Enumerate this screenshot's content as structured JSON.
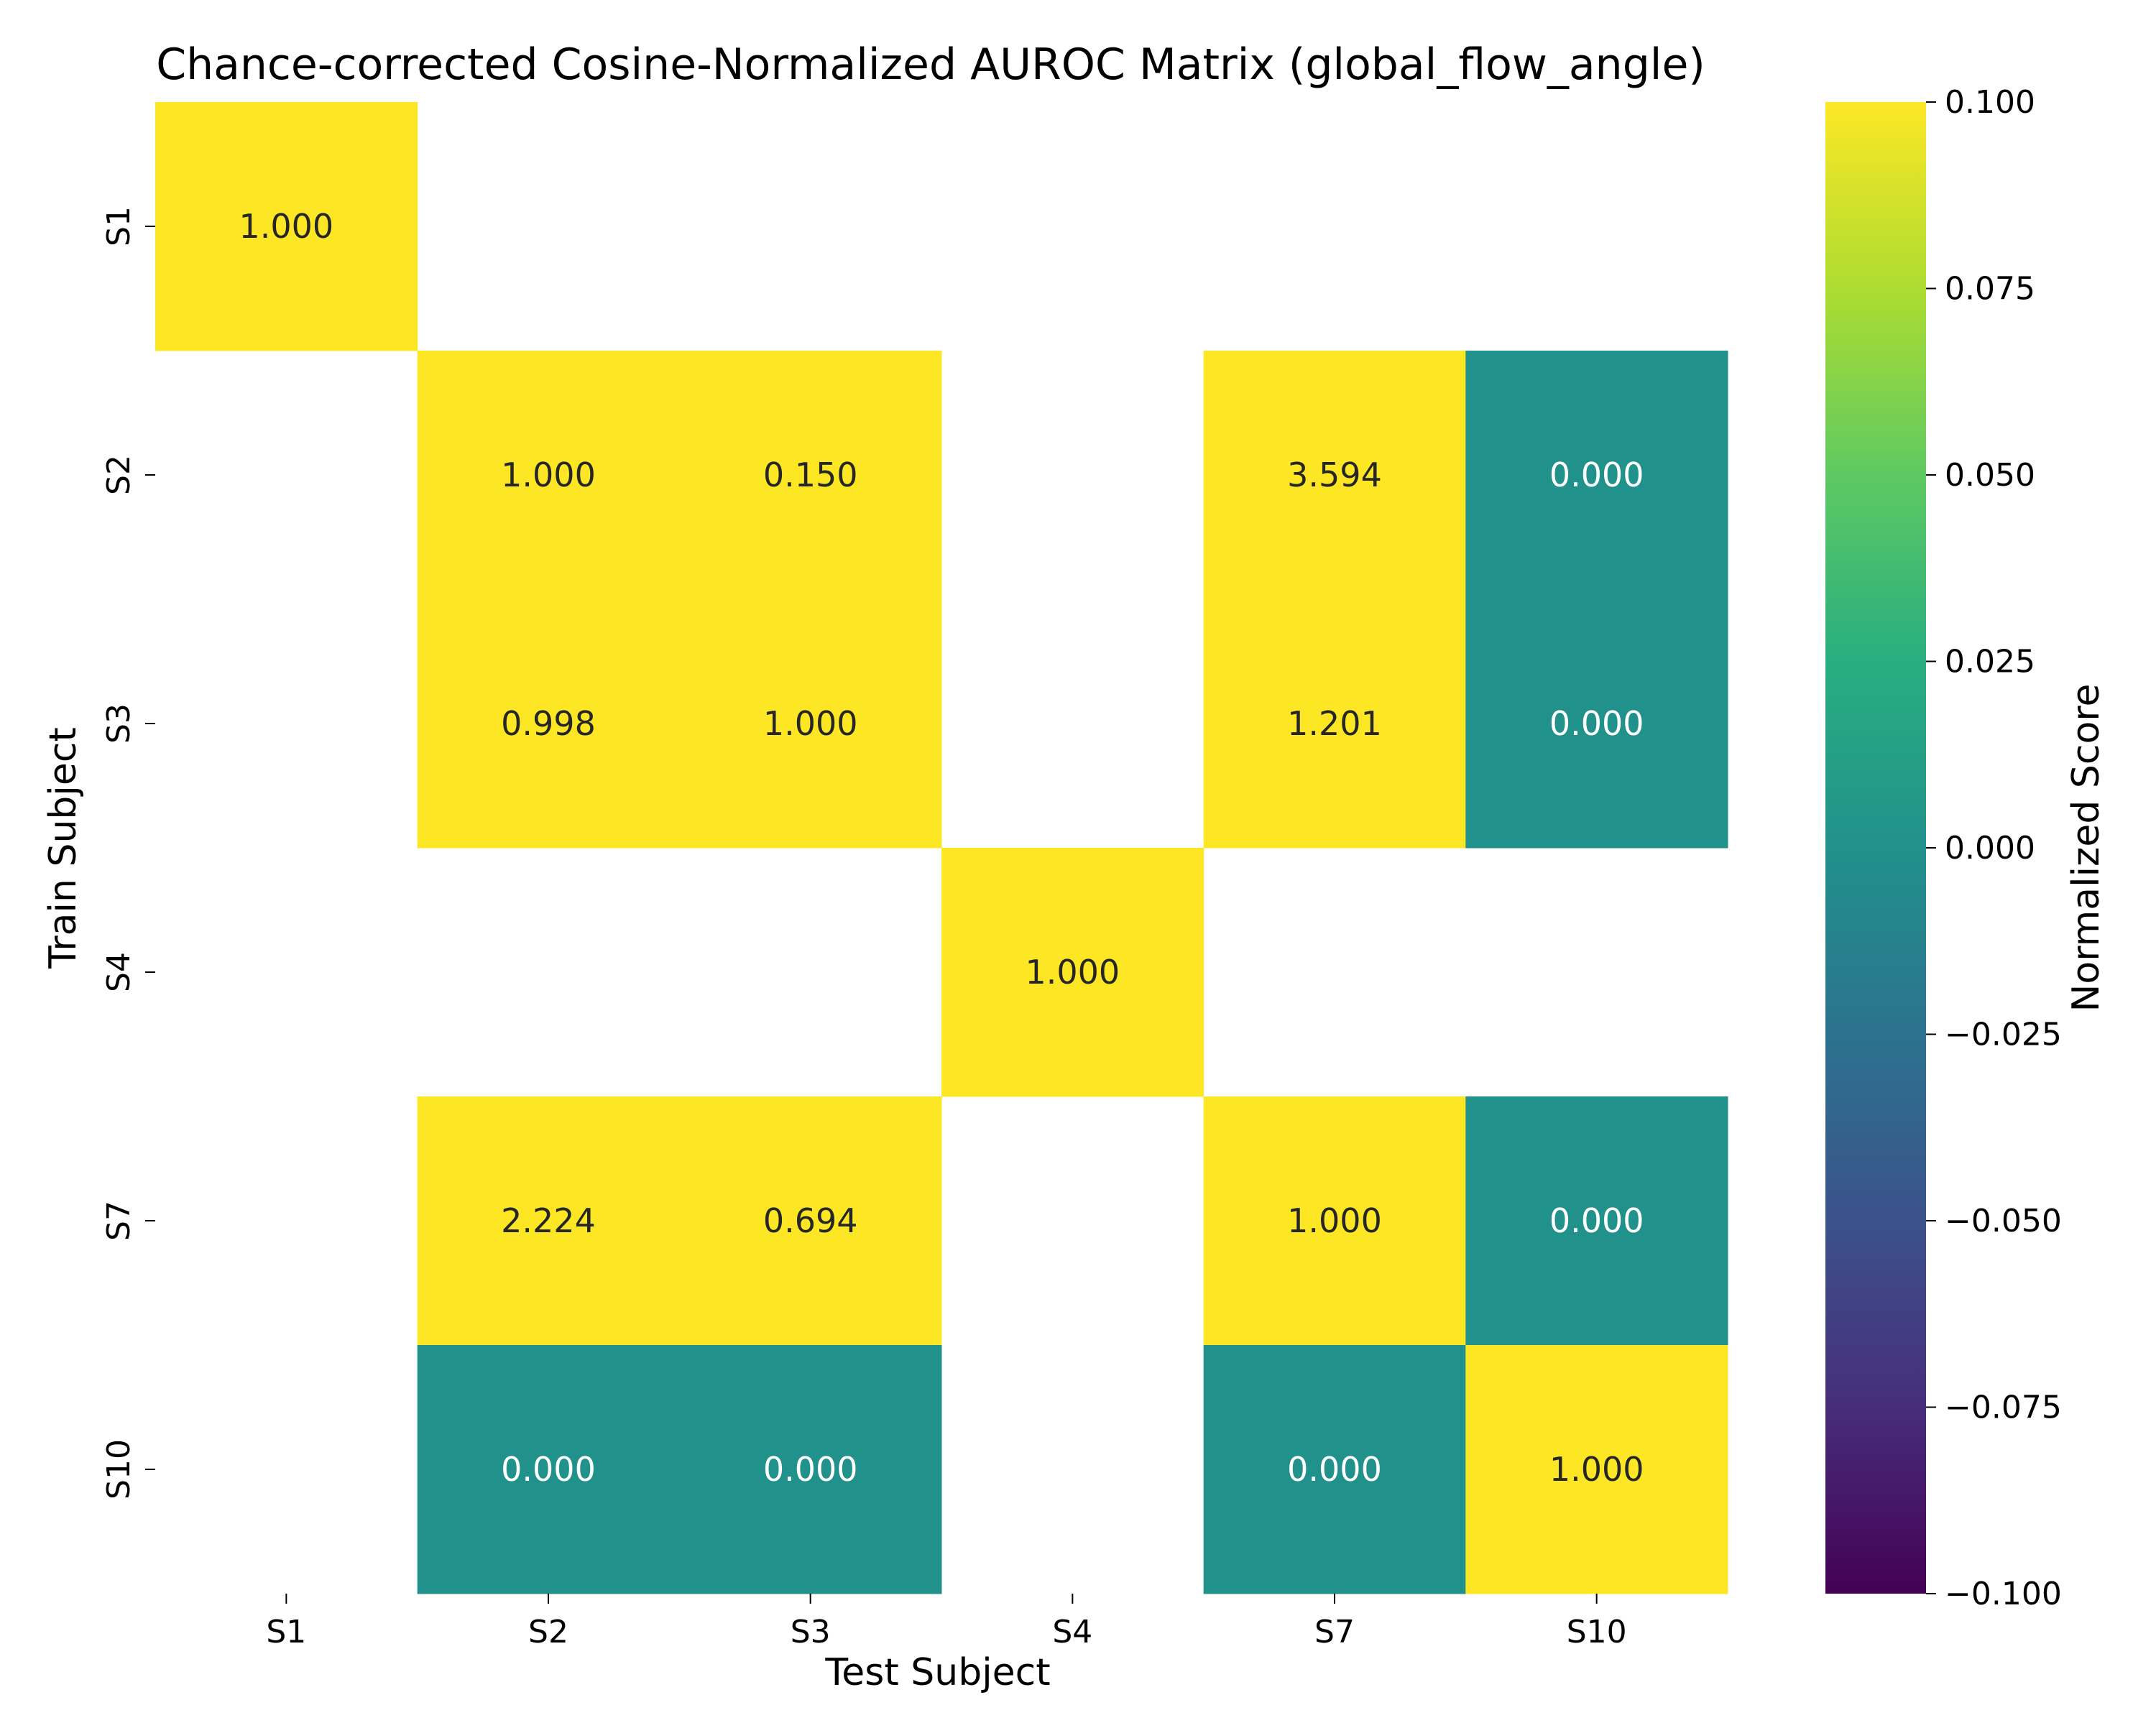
{
  "chart_data": {
    "type": "heatmap",
    "title": "Chance-corrected Cosine-Normalized AUROC Matrix (global_flow_angle)",
    "xlabel": "Test Subject",
    "ylabel": "Train Subject",
    "x_categories": [
      "S1",
      "S2",
      "S3",
      "S4",
      "S7",
      "S10"
    ],
    "y_categories": [
      "S1",
      "S2",
      "S3",
      "S4",
      "S7",
      "S10"
    ],
    "values": [
      [
        1.0,
        null,
        null,
        null,
        null,
        null
      ],
      [
        null,
        1.0,
        0.15,
        null,
        3.594,
        0.0
      ],
      [
        null,
        0.998,
        1.0,
        null,
        1.201,
        0.0
      ],
      [
        null,
        null,
        null,
        1.0,
        null,
        null
      ],
      [
        null,
        2.224,
        0.694,
        null,
        1.0,
        0.0
      ],
      [
        null,
        0.0,
        0.0,
        null,
        0.0,
        1.0
      ]
    ],
    "value_labels": [
      [
        "1.000",
        "",
        "",
        "",
        "",
        ""
      ],
      [
        "",
        "1.000",
        "0.150",
        "",
        "3.594",
        "0.000"
      ],
      [
        "",
        "0.998",
        "1.000",
        "",
        "1.201",
        "0.000"
      ],
      [
        "",
        "",
        "",
        "1.000",
        "",
        ""
      ],
      [
        "",
        "2.224",
        "0.694",
        "",
        "1.000",
        "0.000"
      ],
      [
        "",
        "0.000",
        "0.000",
        "",
        "0.000",
        "1.000"
      ]
    ],
    "colormap": "viridis",
    "vmin": -0.1,
    "vmax": 0.1,
    "colorbar": {
      "label": "Normalized Score",
      "ticks": [
        0.1,
        0.075,
        0.05,
        0.025,
        0.0,
        -0.025,
        -0.05,
        -0.075,
        -0.1
      ],
      "tick_labels": [
        "0.100",
        "0.075",
        "0.050",
        "0.025",
        "0.000",
        "−0.025",
        "−0.050",
        "−0.075",
        "−0.100"
      ]
    },
    "colors": {
      "high": "#fde725",
      "mid": "#21918c",
      "low": "#440154"
    },
    "grid": false,
    "missing_cells": "blank"
  }
}
